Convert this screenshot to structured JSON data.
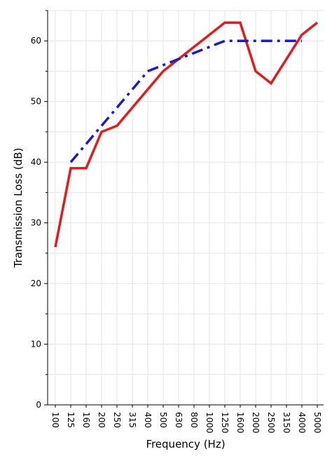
{
  "chart_data": {
    "type": "line",
    "title": "",
    "xlabel": "Frequency (Hz)",
    "ylabel": "Transmission Loss (dB)",
    "categories": [
      "100",
      "125",
      "160",
      "200",
      "250",
      "315",
      "400",
      "500",
      "630",
      "800",
      "1000",
      "1250",
      "1600",
      "2000",
      "2500",
      "3150",
      "4000",
      "5000"
    ],
    "ylim": [
      0,
      65
    ],
    "yticks": [
      "0",
      "10",
      "20",
      "30",
      "40",
      "50",
      "60"
    ],
    "grid": true,
    "legend": "none",
    "series": [
      {
        "color": "#e8191b",
        "style": "solid",
        "values": [
          26,
          39,
          39,
          45,
          46,
          49,
          52,
          55,
          57,
          59,
          61,
          63,
          63,
          55,
          53,
          57,
          61,
          63
        ]
      },
      {
        "color": "#1a1ad6",
        "style": "dash-dot",
        "values": [
          null,
          40,
          43,
          46,
          49,
          52,
          55,
          56,
          57,
          58,
          59,
          60,
          60,
          60,
          60,
          60,
          60,
          null
        ]
      }
    ]
  }
}
